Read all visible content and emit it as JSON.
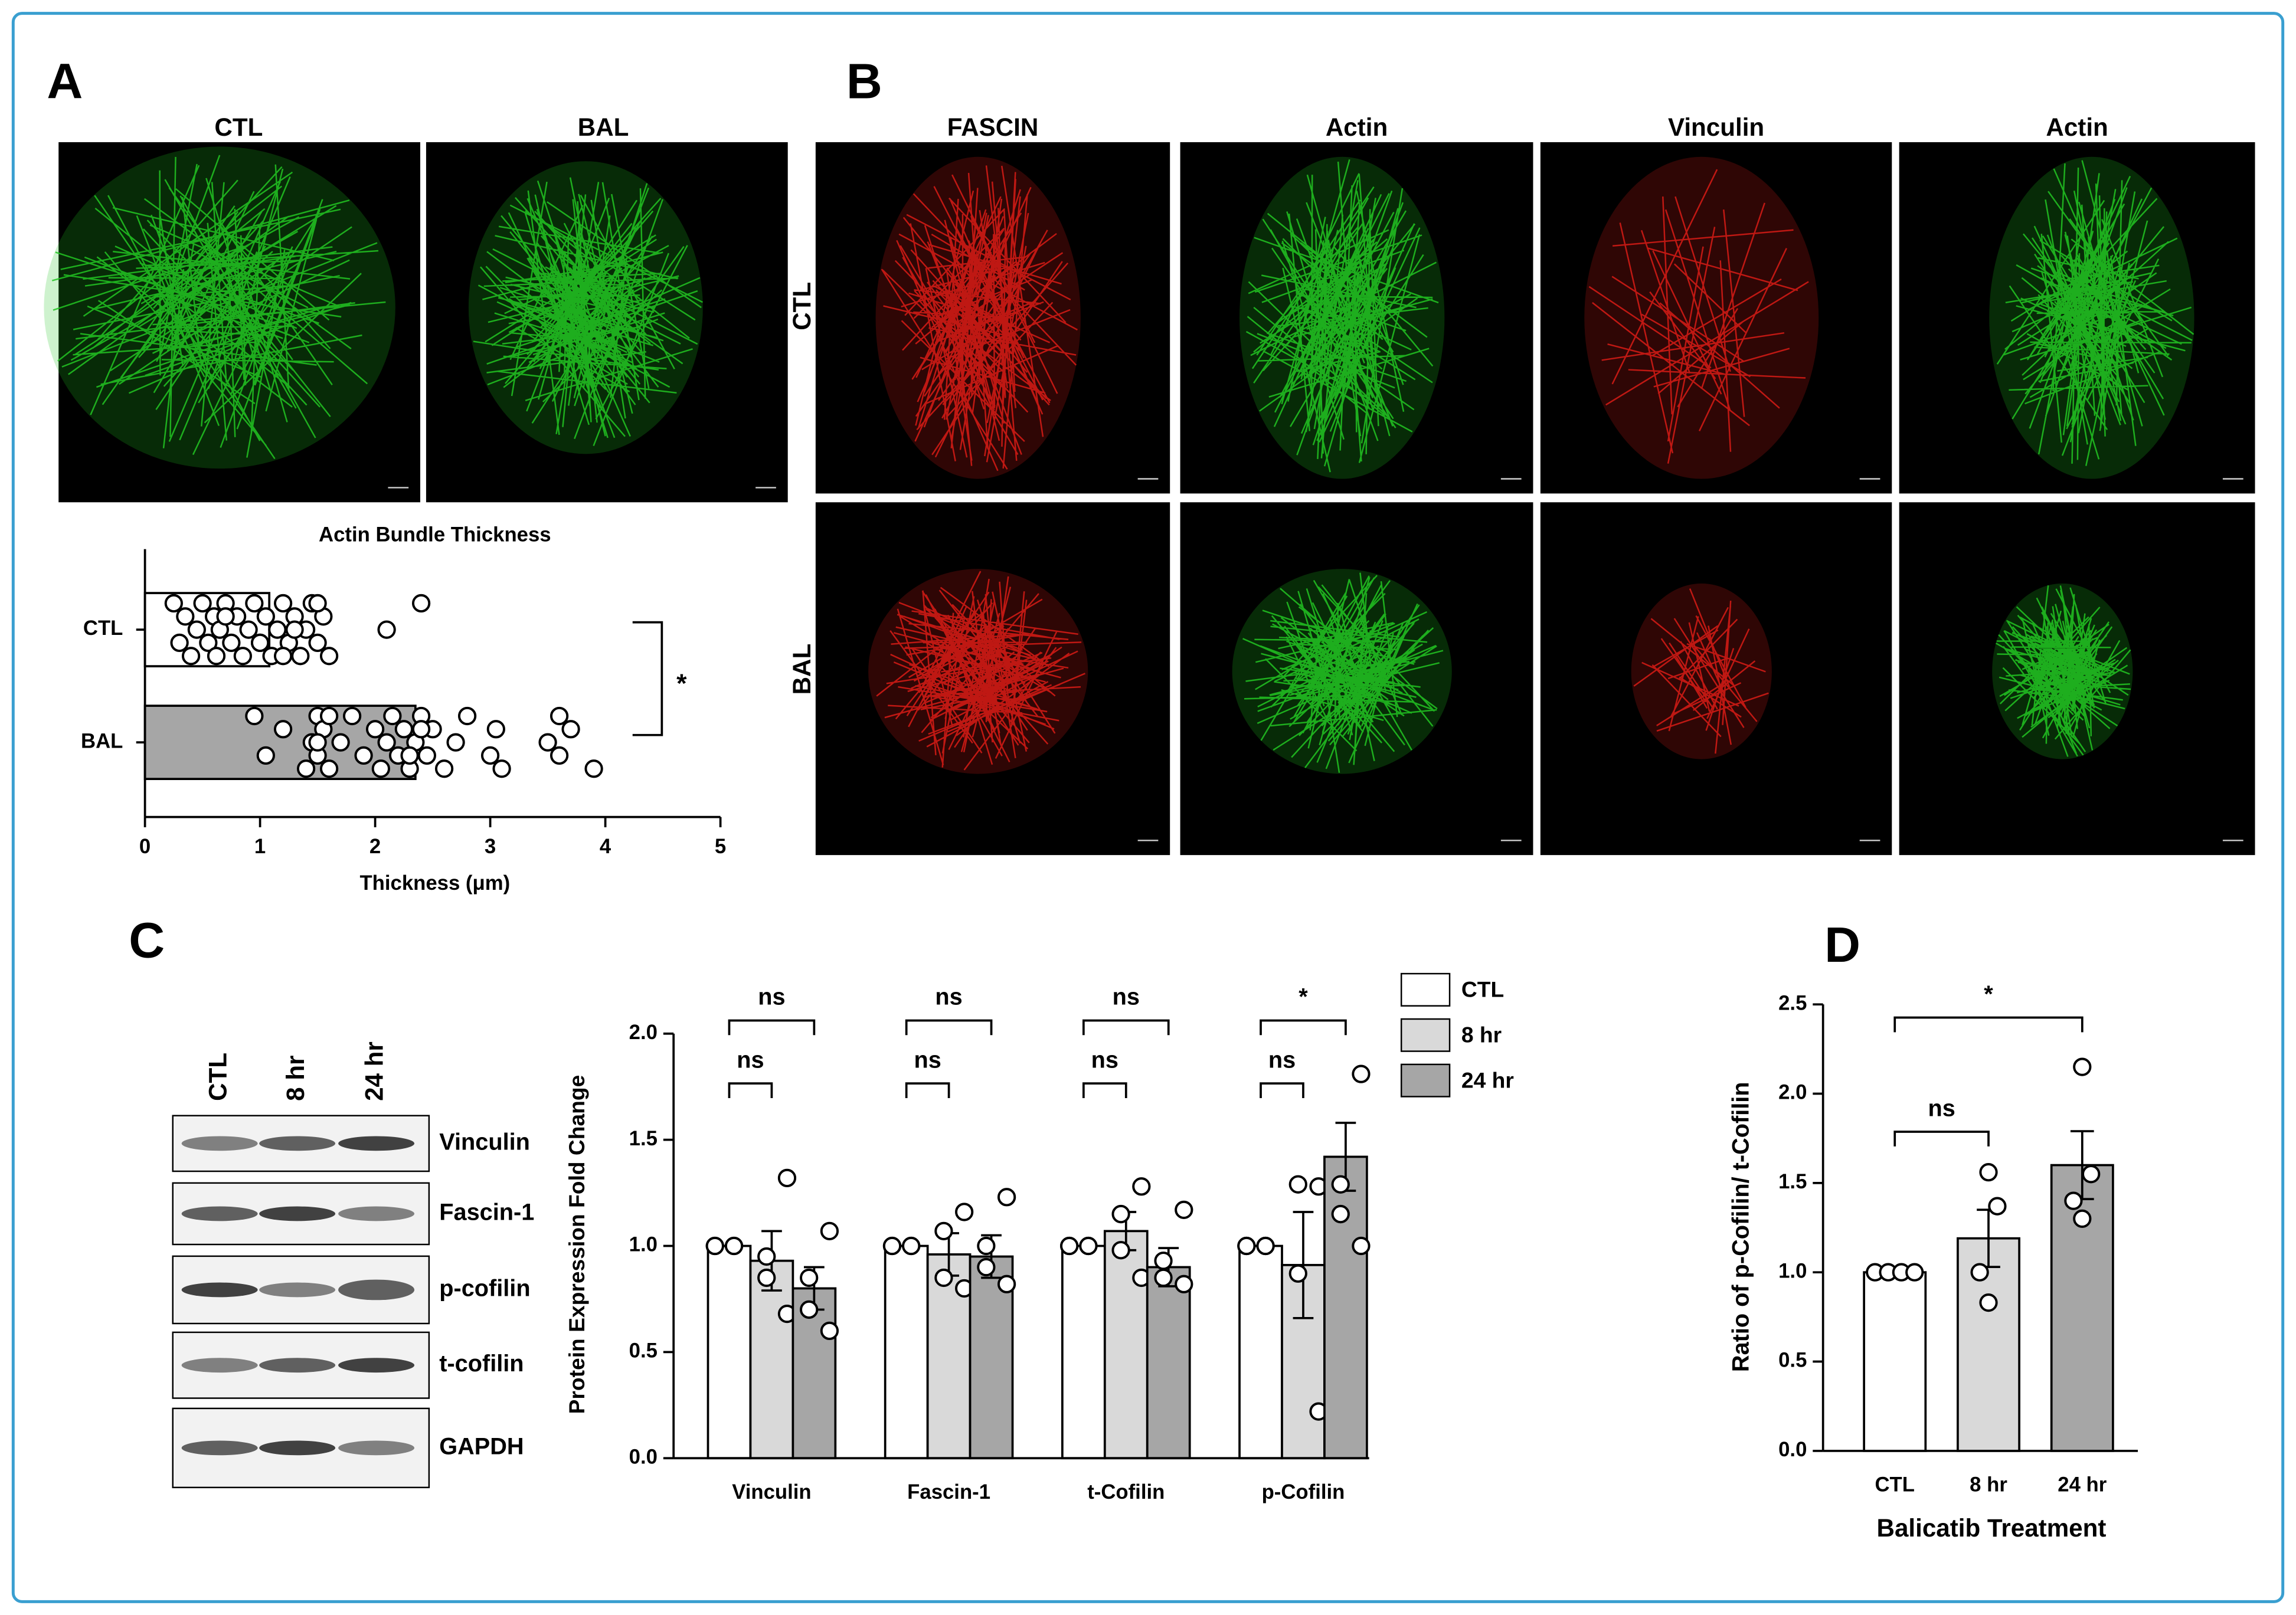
{
  "panel_labels": [
    "A",
    "B",
    "C",
    "D"
  ],
  "panel_a_images": {
    "columns": [
      "CTL",
      "BAL"
    ]
  },
  "panel_b_images": {
    "columns": [
      {
        "text": "FASCIN",
        "color": "#e8201a"
      },
      {
        "text": "Actin",
        "color": "#1aa81a"
      },
      {
        "text": "Vinculin",
        "color": "#e8201a"
      },
      {
        "text": "Actin",
        "color": "#1aa81a"
      }
    ],
    "rows": [
      "CTL",
      "BAL"
    ]
  },
  "panel_c_blot": {
    "lanes": [
      "CTL",
      "8 hr",
      "24 hr"
    ],
    "proteins": [
      "Vinculin",
      "Fascin-1",
      "p-cofilin",
      "t-cofilin",
      "GAPDH"
    ]
  },
  "chart_data": [
    {
      "type": "barh",
      "title": "Actin Bundle Thickness",
      "x_label": "Thickness (μm)",
      "categories": [
        "CTL",
        "BAL"
      ],
      "values": [
        1.08,
        2.35
      ],
      "colors": [
        "#ffffff",
        "#a6a6a6"
      ],
      "points": [
        [
          0.25,
          0.3,
          0.35,
          0.4,
          0.45,
          0.5,
          0.55,
          0.6,
          0.62,
          0.65,
          0.7,
          0.75,
          0.8,
          0.85,
          0.9,
          0.95,
          1.0,
          1.05,
          1.1,
          1.15,
          1.2,
          1.25,
          1.3,
          1.35,
          1.4,
          1.45,
          1.5,
          1.55,
          1.6,
          1.3,
          1.5,
          1.0,
          0.7,
          1.2,
          2.1,
          2.4
        ],
        [
          0.95,
          1.05,
          1.2,
          1.4,
          1.45,
          1.5,
          1.5,
          1.55,
          1.6,
          1.7,
          1.8,
          1.9,
          2.0,
          2.05,
          2.1,
          2.15,
          2.2,
          2.25,
          2.3,
          2.35,
          2.4,
          2.45,
          2.5,
          2.6,
          2.7,
          2.8,
          3.0,
          3.05,
          3.1,
          3.5,
          3.6,
          3.6,
          3.7,
          3.9,
          1.5,
          1.6,
          2.3,
          2.4
        ]
      ],
      "significance": "*",
      "xlim": [
        0,
        5
      ],
      "xticks": [
        0,
        1,
        2,
        3,
        4,
        5
      ]
    },
    {
      "type": "bar",
      "y_label": "Protein Expression Fold Change",
      "categories": [
        "Vinculin",
        "Fascin-1",
        "t-Cofilin",
        "p-Cofilin"
      ],
      "series": [
        {
          "name": "CTL",
          "color": "#ffffff",
          "values": [
            1,
            1,
            1,
            1
          ],
          "points": [
            [
              1,
              1,
              1,
              1
            ],
            [
              1,
              1,
              1,
              1
            ],
            [
              1,
              1,
              1,
              1
            ],
            [
              1,
              1,
              1,
              1
            ]
          ]
        },
        {
          "name": "8 hr",
          "color": "#d9d9d9",
          "values": [
            0.93,
            0.96,
            1.07,
            0.91
          ],
          "errors": [
            0.14,
            0.1,
            0.09,
            0.25
          ],
          "points": [
            [
              1.32,
              0.95,
              0.85,
              0.68
            ],
            [
              1.16,
              1.07,
              0.85,
              0.8
            ],
            [
              1.28,
              1.15,
              0.98,
              0.85
            ],
            [
              1.28,
              1.29,
              0.87,
              0.22
            ]
          ]
        },
        {
          "name": "24 hr",
          "color": "#a6a6a6",
          "values": [
            0.8,
            0.95,
            0.9,
            1.42
          ],
          "errors": [
            0.1,
            0.1,
            0.09,
            0.16
          ],
          "points": [
            [
              1.07,
              0.85,
              0.7,
              0.6
            ],
            [
              1.23,
              1.0,
              0.9,
              0.82
            ],
            [
              1.17,
              0.93,
              0.85,
              0.82
            ],
            [
              1.81,
              1.29,
              1.15,
              1.0
            ]
          ]
        }
      ],
      "significance_8hr": [
        "ns",
        "ns",
        "ns",
        "ns"
      ],
      "significance_24hr": [
        "ns",
        "ns",
        "ns",
        "*"
      ],
      "ylim": [
        0,
        2
      ],
      "yticks": [
        {
          "value": 0,
          "label": "0.0"
        },
        {
          "value": 0.5,
          "label": "0.5"
        },
        {
          "value": 1,
          "label": "1.0"
        },
        {
          "value": 1.5,
          "label": "1.5"
        },
        {
          "value": 2,
          "label": "2.0"
        }
      ],
      "legend": "top-right"
    },
    {
      "type": "bar",
      "y_label": "Ratio of p-Cofilin/ t-Cofilin",
      "x_label": "Balicatib Treatment",
      "categories": [
        "CTL",
        "8 hr",
        "24 hr"
      ],
      "values": [
        1.0,
        1.19,
        1.6
      ],
      "errors": [
        null,
        0.16,
        0.19
      ],
      "colors": [
        "#ffffff",
        "#d9d9d9",
        "#a6a6a6"
      ],
      "points": [
        [
          1,
          1,
          1,
          1
        ],
        [
          1.56,
          1.37,
          1.0,
          0.83
        ],
        [
          2.15,
          1.55,
          1.4,
          1.3
        ]
      ],
      "significance": [
        "ns",
        "*"
      ],
      "ylim": [
        0,
        2.5
      ],
      "yticks": [
        {
          "value": 0,
          "label": "0.0"
        },
        {
          "value": 0.5,
          "label": "0.5"
        },
        {
          "value": 1,
          "label": "1.0"
        },
        {
          "value": 1.5,
          "label": "1.5"
        },
        {
          "value": 2,
          "label": "2.0"
        },
        {
          "value": 2.5,
          "label": "2.5"
        }
      ]
    }
  ]
}
